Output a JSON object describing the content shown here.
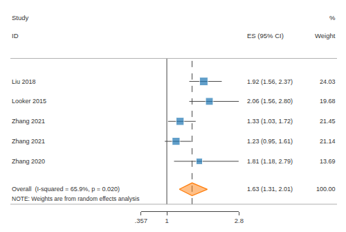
{
  "chart_data": {
    "type": "forest",
    "categories": [
      "Liu 2018",
      "Looker 2015",
      "Zhang 2021",
      "Zhang 2021",
      "Zhang 2020"
    ],
    "values": [
      1.92,
      2.06,
      1.33,
      1.23,
      1.81
    ],
    "ci_low": [
      1.56,
      1.56,
      1.03,
      0.95,
      1.18
    ],
    "ci_high": [
      2.37,
      2.8,
      1.72,
      1.61,
      2.79
    ],
    "weights": [
      24.03,
      19.68,
      21.45,
      21.14,
      13.69
    ],
    "value_labels": [
      "1.92 (1.56, 2.37)",
      "2.06 (1.56, 2.80)",
      "1.33 (1.03, 1.72)",
      "1.23 (0.95, 1.61)",
      "1.81 (1.18, 2.79)"
    ],
    "weight_labels": [
      "24.03",
      "19.68",
      "21.45",
      "21.14",
      "13.69"
    ],
    "overall": {
      "label": "Overall  (I-squared = 65.9%, p = 0.020)",
      "value": 1.63,
      "ci_low": 1.31,
      "ci_high": 2.01,
      "value_label": "1.63 (1.31, 2.01)",
      "weight_label": "100.00"
    },
    "column_titles": {
      "study": [
        "Study",
        "ID"
      ],
      "estimate": "ES (95% CI)",
      "weight": [
        "%",
        "Weight"
      ]
    },
    "note": "NOTE: Weights are from random effects analysis",
    "reference_line": 1.0,
    "pooled_line": 1.63,
    "xlim": [
      0.357,
      2.8
    ],
    "xticks": [
      {
        "value": 0.357,
        "label": ".357"
      },
      1,
      2.8
    ],
    "grid": false
  }
}
